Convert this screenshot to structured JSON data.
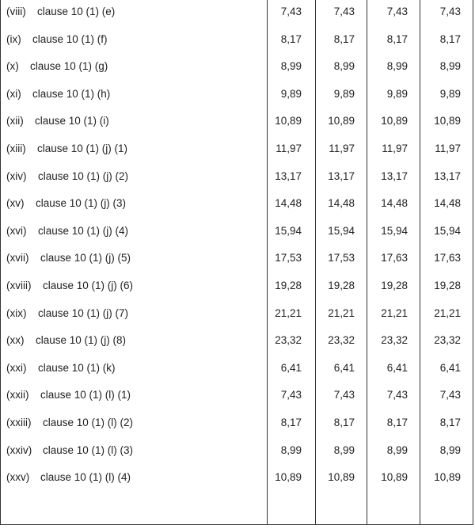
{
  "table": {
    "rows": [
      [
        "(viii)",
        "clause 10 (1) (e)",
        "7,43",
        "7,43",
        "7,43",
        "7,43"
      ],
      [
        "(ix)",
        "clause 10 (1) (f)",
        "8,17",
        "8,17",
        "8,17",
        "8,17"
      ],
      [
        "(x)",
        "clause 10 (1) (g)",
        "8,99",
        "8,99",
        "8,99",
        "8,99"
      ],
      [
        "(xi)",
        "clause 10 (1) (h)",
        "9,89",
        "9,89",
        "9,89",
        "9,89"
      ],
      [
        "(xii)",
        "clause 10 (1) (i)",
        "10,89",
        "10,89",
        "10,89",
        "10,89"
      ],
      [
        "(xiii)",
        "clause 10 (1) (j) (1)",
        "11,97",
        "11,97",
        "11,97",
        "11,97"
      ],
      [
        "(xiv)",
        "clause 10 (1) (j) (2)",
        "13,17",
        "13,17",
        "13,17",
        "13,17"
      ],
      [
        "(xv)",
        "clause 10 (1) (j) (3)",
        "14,48",
        "14,48",
        "14,48",
        "14,48"
      ],
      [
        "(xvi)",
        "clause 10 (1) (j) (4)",
        "15,94",
        "15,94",
        "15,94",
        "15,94"
      ],
      [
        "(xvii)",
        "clause 10 (1) (j) (5)",
        "17,53",
        "17,53",
        "17,63",
        "17,63"
      ],
      [
        "(xviii)",
        "clause 10 (1) (j) (6)",
        "19,28",
        "19,28",
        "19,28",
        "19,28"
      ],
      [
        "(xix)",
        "clause 10 (1) (j) (7)",
        "21,21",
        "21,21",
        "21,21",
        "21,21"
      ],
      [
        "(xx)",
        "clause 10 (1) (j) (8)",
        "23,32",
        "23,32",
        "23,32",
        "23,32"
      ],
      [
        "(xxi)",
        "clause 10 (1) (k)",
        "6,41",
        "6,41",
        "6,41",
        "6,41"
      ],
      [
        "(xxii)",
        "clause 10 (1) (l) (1)",
        "7,43",
        "7,43",
        "7,43",
        "7,43"
      ],
      [
        "(xxiii)",
        "clause 10 (1) (l) (2)",
        "8,17",
        "8,17",
        "8,17",
        "8,17"
      ],
      [
        "(xxiv)",
        "clause 10 (1) (l) (3)",
        "8,99",
        "8,99",
        "8,99",
        "8,99"
      ],
      [
        "(xxv)",
        "clause 10 (1) (l) (4)",
        "10,89",
        "10,89",
        "10,89",
        "10,89"
      ]
    ]
  }
}
